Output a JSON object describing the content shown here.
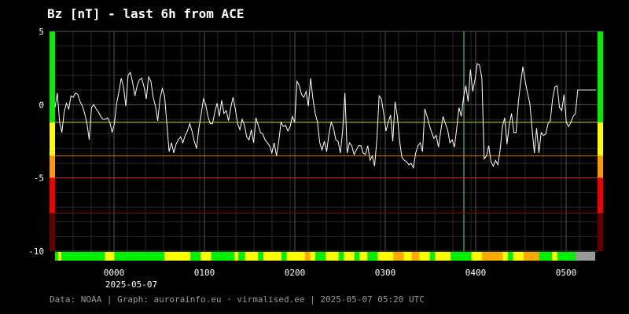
{
  "title": "Bz [nT] - last 6h from ACE",
  "footer": "Data: NOAA | Graph: aurorainfo.eu · virmalised.ee | 2025-05-07 05:20 UTC",
  "chart_data": {
    "type": "line",
    "series": [
      {
        "values": [
          -0.2,
          0.8,
          -1.2,
          -1.9,
          -0.5,
          0.1,
          -0.3,
          0.6,
          0.5,
          0.8,
          0.7,
          0.2,
          -0.1,
          -0.6,
          -1.3,
          -2.4,
          -0.2,
          0,
          -0.3,
          -0.5,
          -0.8,
          -1,
          -1,
          -0.9,
          -1.2,
          -1.9,
          -1.3,
          0.1,
          0.9,
          1.8,
          1.2,
          -0.1,
          2,
          2.2,
          1.5,
          0.6,
          1.3,
          1.7,
          1.8,
          1.2,
          0.4,
          1.9,
          1.6,
          0.5,
          -0.1,
          -1.1,
          0.4,
          1.1,
          0.6,
          -1.3,
          -3.2,
          -2.6,
          -3.3,
          -2.7,
          -2.4,
          -2.2,
          -2.6,
          -2.1,
          -1.8,
          -1.3,
          -1.8,
          -2.5,
          -3,
          -1.6,
          -0.7,
          0.4,
          0,
          -0.8,
          -1.3,
          -1.3,
          -0.5,
          0.1,
          -0.8,
          0.3,
          -0.6,
          -0.4,
          -1.1,
          -0.2,
          0.5,
          -0.3,
          -1.3,
          -1.7,
          -1,
          -1.4,
          -2.2,
          -2.4,
          -1.7,
          -2.6,
          -0.9,
          -1.4,
          -1.9,
          -2,
          -2.4,
          -2.6,
          -2.8,
          -3.3,
          -2.6,
          -3.5,
          -2.5,
          -1.2,
          -1.5,
          -1.4,
          -1.8,
          -1.5,
          -0.8,
          -1.2,
          1.6,
          1.3,
          0.7,
          0.5,
          0.9,
          -0.1,
          1.8,
          0.4,
          -0.6,
          -1.2,
          -2.6,
          -3.1,
          -2.5,
          -3.2,
          -2,
          -1.2,
          -1.6,
          -2.4,
          -2.5,
          -3.3,
          -1.8,
          0.8,
          -3.3,
          -2.6,
          -2.8,
          -3.4,
          -3.1,
          -2.8,
          -2.8,
          -3.3,
          -3.4,
          -2.8,
          -3.8,
          -3.5,
          -4.2,
          -2.4,
          0.6,
          0.4,
          -0.6,
          -1.8,
          -1.2,
          -0.7,
          -2.5,
          0.2,
          -0.8,
          -2.5,
          -3.6,
          -3.8,
          -3.9,
          -4.1,
          -4,
          -4.3,
          -3.3,
          -2.8,
          -2.6,
          -3.2,
          -0.3,
          -0.8,
          -1.4,
          -1.9,
          -2.3,
          -2.1,
          -2.9,
          -1.8,
          -0.8,
          -1.3,
          -1.7,
          -2.6,
          -2.4,
          -2.9,
          -1.6,
          -0.2,
          -0.8,
          0.5,
          1.3,
          0.2,
          2.4,
          0.9,
          1.7,
          2.8,
          2.7,
          1.8,
          -3.7,
          -3.5,
          -2.8,
          -3.9,
          -4.2,
          -3.8,
          -4.1,
          -3.1,
          -1.5,
          -0.9,
          -2.7,
          -1.4,
          -0.6,
          -1.9,
          -1.9,
          0.2,
          1.5,
          2.6,
          1.6,
          0.8,
          0.1,
          -1.6,
          -3.3,
          -1.6,
          -3.3,
          -1.9,
          -2.1,
          -2,
          -1.3,
          -1.1,
          0.4,
          1.2,
          1.3,
          -0.2,
          -0.4,
          0.7,
          -1.2,
          -1.5,
          -1.2,
          -0.8,
          -0.6,
          1,
          1,
          1,
          1,
          1,
          1,
          1,
          1,
          1
        ]
      }
    ],
    "ylim": [
      -10,
      5
    ],
    "yticks": [
      "5",
      "0",
      "-5",
      "-10"
    ],
    "xticks": [
      "0000",
      "0100",
      "0200",
      "0300",
      "0400",
      "0500"
    ],
    "xdate": "2025-05-07",
    "threshold_lines": [
      {
        "value": -1.2,
        "color": "#cccc33"
      },
      {
        "value": -3.5,
        "color": "#cc7a1a"
      },
      {
        "value": -5,
        "color": "#cc2020"
      },
      {
        "value": -7.4,
        "color": "#8b0000"
      }
    ],
    "color_bar": [
      {
        "color": "#00ee00",
        "start": 0,
        "end": 0.006
      },
      {
        "color": "#ffff00",
        "start": 0.006,
        "end": 0.012
      },
      {
        "color": "#00ee00",
        "start": 0.012,
        "end": 0.096
      },
      {
        "color": "#ffff00",
        "start": 0.096,
        "end": 0.114
      },
      {
        "color": "#00ee00",
        "start": 0.114,
        "end": 0.21
      },
      {
        "color": "#ffff00",
        "start": 0.21,
        "end": 0.26
      },
      {
        "color": "#00ee00",
        "start": 0.26,
        "end": 0.28
      },
      {
        "color": "#ffff00",
        "start": 0.28,
        "end": 0.3
      },
      {
        "color": "#00ee00",
        "start": 0.3,
        "end": 0.345
      },
      {
        "color": "#ffff00",
        "start": 0.345,
        "end": 0.352
      },
      {
        "color": "#00ee00",
        "start": 0.352,
        "end": 0.365
      },
      {
        "color": "#ffff00",
        "start": 0.365,
        "end": 0.39
      },
      {
        "color": "#00ee00",
        "start": 0.39,
        "end": 0.4
      },
      {
        "color": "#ffff00",
        "start": 0.4,
        "end": 0.435
      },
      {
        "color": "#00ee00",
        "start": 0.435,
        "end": 0.445
      },
      {
        "color": "#ffff00",
        "start": 0.445,
        "end": 0.48
      },
      {
        "color": "#ffaa00",
        "start": 0.48,
        "end": 0.49
      },
      {
        "color": "#ffff00",
        "start": 0.49,
        "end": 0.5
      },
      {
        "color": "#00ee00",
        "start": 0.5,
        "end": 0.52
      },
      {
        "color": "#ffff00",
        "start": 0.52,
        "end": 0.545
      },
      {
        "color": "#00ee00",
        "start": 0.545,
        "end": 0.555
      },
      {
        "color": "#ffff00",
        "start": 0.555,
        "end": 0.575
      },
      {
        "color": "#00ee00",
        "start": 0.575,
        "end": 0.585
      },
      {
        "color": "#ffff00",
        "start": 0.585,
        "end": 0.6
      },
      {
        "color": "#00ee00",
        "start": 0.6,
        "end": 0.62
      },
      {
        "color": "#ffff00",
        "start": 0.62,
        "end": 0.65
      },
      {
        "color": "#ffaa00",
        "start": 0.65,
        "end": 0.67
      },
      {
        "color": "#ffff00",
        "start": 0.67,
        "end": 0.685
      },
      {
        "color": "#ffaa00",
        "start": 0.685,
        "end": 0.7
      },
      {
        "color": "#ffff00",
        "start": 0.7,
        "end": 0.72
      },
      {
        "color": "#00ee00",
        "start": 0.72,
        "end": 0.73
      },
      {
        "color": "#ffff00",
        "start": 0.73,
        "end": 0.76
      },
      {
        "color": "#00ee00",
        "start": 0.76,
        "end": 0.8
      },
      {
        "color": "#ffff00",
        "start": 0.8,
        "end": 0.82
      },
      {
        "color": "#ffaa00",
        "start": 0.82,
        "end": 0.86
      },
      {
        "color": "#ffff00",
        "start": 0.86,
        "end": 0.87
      },
      {
        "color": "#00ee00",
        "start": 0.87,
        "end": 0.88
      },
      {
        "color": "#ffff00",
        "start": 0.88,
        "end": 0.9
      },
      {
        "color": "#ffaa00",
        "start": 0.9,
        "end": 0.93
      },
      {
        "color": "#00ee00",
        "start": 0.93,
        "end": 0.955
      },
      {
        "color": "#ffff00",
        "start": 0.955,
        "end": 0.965
      },
      {
        "color": "#00ee00",
        "start": 0.965,
        "end": 1
      }
    ],
    "color_bar_tail": "#999999",
    "side_bars": [
      {
        "from": 5,
        "to": -1.2,
        "color": "#00ee00"
      },
      {
        "from": -1.2,
        "to": -3.5,
        "color": "#ffff00"
      },
      {
        "from": -3.5,
        "to": -5,
        "color": "#ff9900"
      },
      {
        "from": -5,
        "to": -7.4,
        "color": "#ee0000"
      },
      {
        "from": -7.4,
        "to": -10,
        "color": "#660000"
      }
    ],
    "line_color": "#ffffff",
    "grid": true
  }
}
